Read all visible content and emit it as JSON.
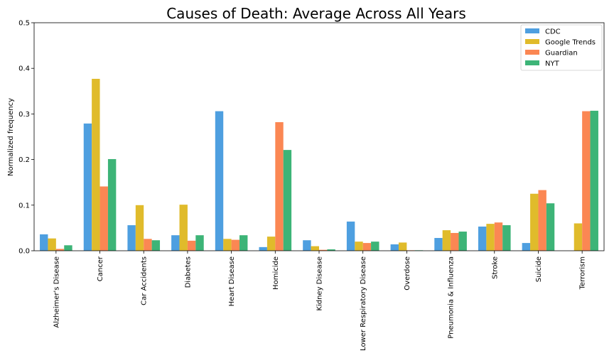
{
  "chart_data": {
    "type": "bar",
    "title": "Causes of Death: Average Across All Years",
    "xlabel": "",
    "ylabel": "Normalized frequency",
    "ylim": [
      0,
      0.5
    ],
    "yticks": [
      "0.0",
      "0.1",
      "0.2",
      "0.3",
      "0.4",
      "0.5"
    ],
    "grid": false,
    "legend_position": "top-right",
    "categories": [
      "Alzheimer's Disease",
      "Cancer",
      "Car Accidents",
      "Diabetes",
      "Heart Disease",
      "Homicide",
      "Kidney Disease",
      "Lower Respiratory Disease",
      "Overdose",
      "Pneumonia & Influenza",
      "Stroke",
      "Suicide",
      "Terrorism"
    ],
    "series": [
      {
        "name": "CDC",
        "color": "#4e9fe0",
        "values": [
          0.036,
          0.279,
          0.056,
          0.034,
          0.306,
          0.008,
          0.023,
          0.064,
          0.014,
          0.028,
          0.053,
          0.017,
          0.0
        ]
      },
      {
        "name": "Google Trends",
        "color": "#e0bb2b",
        "values": [
          0.027,
          0.377,
          0.1,
          0.101,
          0.026,
          0.031,
          0.01,
          0.02,
          0.018,
          0.045,
          0.059,
          0.125,
          0.06
        ]
      },
      {
        "name": "Guardian",
        "color": "#fb8753",
        "values": [
          0.004,
          0.141,
          0.026,
          0.022,
          0.024,
          0.282,
          0.002,
          0.017,
          0.001,
          0.039,
          0.062,
          0.133,
          0.306
        ]
      },
      {
        "name": "NYT",
        "color": "#3db477",
        "values": [
          0.012,
          0.201,
          0.023,
          0.034,
          0.034,
          0.221,
          0.003,
          0.02,
          0.001,
          0.042,
          0.056,
          0.104,
          0.307
        ]
      }
    ]
  }
}
